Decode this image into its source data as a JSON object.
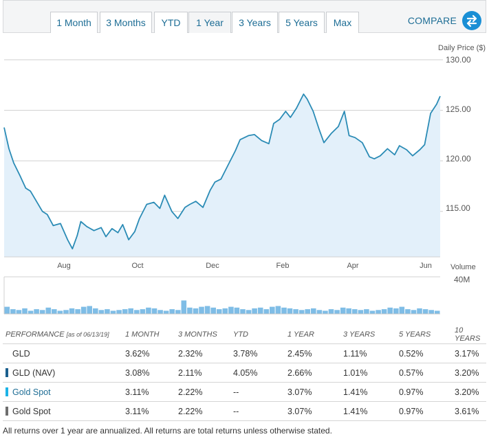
{
  "range_tabs": [
    "1 Month",
    "3 Months",
    "YTD",
    "1 Year",
    "3 Years",
    "5 Years",
    "Max"
  ],
  "active_tab": "1 Year",
  "compare_label": "COMPARE",
  "compare_icon": "swap-arrows-icon",
  "colors": {
    "accent": "#1d6d95",
    "price_line": "#2a8bb5",
    "volume_bar": "#7fbde6",
    "gld_nav": "#1b5f8e",
    "gold_spot_blue": "#1cb3e6",
    "gold_spot_gray": "#6e6e6e"
  },
  "chart_data": [
    {
      "type": "line",
      "title": "",
      "ylabel": "Daily Price ($)",
      "ylim": [
        110.5,
        130
      ],
      "yticks": [
        "130.00",
        "125.00",
        "120.00",
        "115.00"
      ],
      "x_tick_labels": [
        "Aug",
        "Oct",
        "Dec",
        "Feb",
        "Apr",
        "Jun"
      ],
      "x_start": "2018-06-14",
      "x_end": "2019-06-13",
      "x": [
        "2018-06-14",
        "2018-06-18",
        "2018-06-22",
        "2018-06-27",
        "2018-07-02",
        "2018-07-06",
        "2018-07-11",
        "2018-07-16",
        "2018-07-20",
        "2018-07-25",
        "2018-07-31",
        "2018-08-06",
        "2018-08-10",
        "2018-08-14",
        "2018-08-17",
        "2018-08-22",
        "2018-08-28",
        "2018-09-03",
        "2018-09-07",
        "2018-09-12",
        "2018-09-17",
        "2018-09-21",
        "2018-09-26",
        "2018-10-01",
        "2018-10-05",
        "2018-10-11",
        "2018-10-17",
        "2018-10-22",
        "2018-10-26",
        "2018-11-01",
        "2018-11-06",
        "2018-11-12",
        "2018-11-16",
        "2018-11-21",
        "2018-11-27",
        "2018-12-03",
        "2018-12-07",
        "2018-12-12",
        "2018-12-18",
        "2018-12-24",
        "2018-12-28",
        "2019-01-04",
        "2019-01-09",
        "2019-01-15",
        "2019-01-21",
        "2019-01-25",
        "2019-01-30",
        "2019-02-04",
        "2019-02-08",
        "2019-02-13",
        "2019-02-19",
        "2019-02-22",
        "2019-02-27",
        "2019-03-04",
        "2019-03-08",
        "2019-03-14",
        "2019-03-20",
        "2019-03-25",
        "2019-03-29",
        "2019-04-03",
        "2019-04-09",
        "2019-04-15",
        "2019-04-19",
        "2019-04-24",
        "2019-04-30",
        "2019-05-06",
        "2019-05-10",
        "2019-05-16",
        "2019-05-21",
        "2019-05-27",
        "2019-05-31",
        "2019-06-05",
        "2019-06-10",
        "2019-06-13"
      ],
      "values": [
        123.3,
        121.2,
        119.8,
        118.6,
        117.3,
        117.0,
        116.0,
        115.0,
        114.7,
        113.6,
        113.8,
        112.2,
        111.3,
        112.6,
        114.0,
        113.5,
        113.1,
        113.4,
        112.5,
        113.3,
        112.9,
        113.7,
        112.2,
        113.0,
        114.3,
        115.7,
        115.9,
        115.3,
        116.6,
        115.0,
        114.3,
        115.4,
        115.7,
        116.0,
        115.4,
        117.1,
        117.9,
        118.2,
        119.6,
        121.0,
        122.1,
        122.5,
        122.6,
        122.0,
        121.7,
        123.7,
        124.1,
        124.9,
        124.3,
        125.2,
        126.6,
        126.1,
        124.9,
        123.1,
        121.8,
        122.7,
        123.4,
        124.9,
        122.5,
        122.3,
        121.8,
        120.4,
        120.2,
        120.5,
        121.2,
        120.6,
        121.5,
        121.1,
        120.5,
        121.1,
        121.6,
        124.7,
        125.6,
        126.4
      ]
    },
    {
      "type": "bar",
      "title": "Volume",
      "ylabel": "40M",
      "values": [
        9,
        6,
        5,
        7,
        4,
        6,
        5,
        8,
        6,
        4,
        5,
        7,
        6,
        9,
        10,
        7,
        5,
        6,
        4,
        5,
        6,
        7,
        5,
        6,
        8,
        7,
        5,
        4,
        6,
        5,
        17,
        8,
        7,
        9,
        10,
        8,
        6,
        7,
        9,
        8,
        6,
        5,
        7,
        8,
        6,
        9,
        10,
        8,
        7,
        6,
        5,
        6,
        7,
        5,
        4,
        6,
        5,
        8,
        7,
        6,
        5,
        6,
        4,
        5,
        6,
        8,
        7,
        9,
        6,
        5,
        7,
        6,
        5,
        4
      ]
    }
  ],
  "performance": {
    "header_label": "PERFORMANCE",
    "as_of": "[as of 06/13/19]",
    "columns": [
      "1 MONTH",
      "3 MONTHS",
      "YTD",
      "1 YEAR",
      "3 YEARS",
      "5 YEARS",
      "10 YEARS"
    ],
    "rows": [
      {
        "name": "GLD",
        "swatch": "none",
        "values": [
          "3.62%",
          "2.32%",
          "3.78%",
          "2.45%",
          "1.11%",
          "0.52%",
          "3.17%"
        ]
      },
      {
        "name": "GLD (NAV)",
        "swatch": "#1b5f8e",
        "values": [
          "3.08%",
          "2.11%",
          "4.05%",
          "2.66%",
          "1.01%",
          "0.57%",
          "3.20%"
        ]
      },
      {
        "name": "Gold Spot",
        "swatch": "#1cb3e6",
        "name_color": "#1d6d95",
        "values": [
          "3.11%",
          "2.22%",
          "--",
          "3.07%",
          "1.41%",
          "0.97%",
          "3.20%"
        ]
      },
      {
        "name": "Gold Spot",
        "swatch": "#6e6e6e",
        "values": [
          "3.11%",
          "2.22%",
          "--",
          "3.07%",
          "1.41%",
          "0.97%",
          "3.61%"
        ]
      }
    ]
  },
  "footnote": "All returns over 1 year are annualized. All returns are total returns unless otherwise stated."
}
